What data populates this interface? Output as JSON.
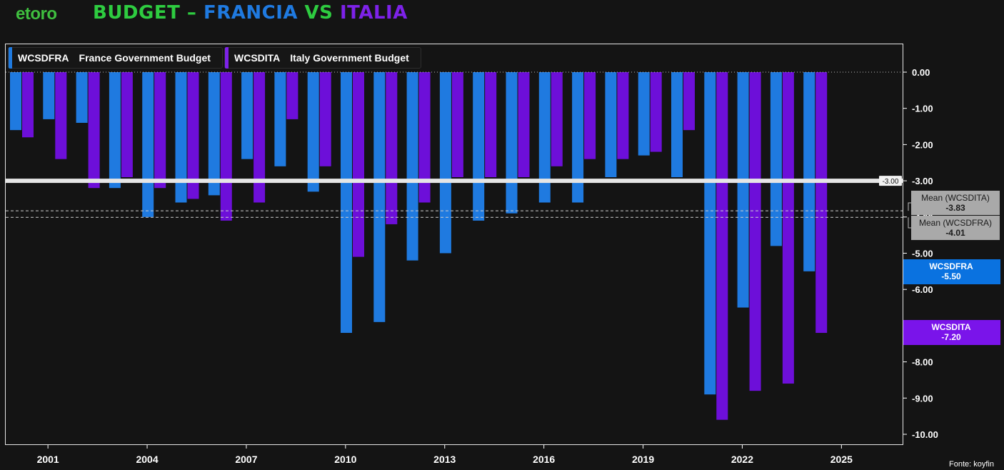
{
  "header": {
    "logo_text": "etoro",
    "title_part1": "BUDGET – ",
    "title_part2": "FRANCIA",
    "title_part3": " VS ",
    "title_part4": "ITALIA"
  },
  "legend": [
    {
      "code": "WCSDFRA",
      "label": "France Government Budget",
      "color": "#1f7ae0"
    },
    {
      "code": "WCSDITA",
      "label": "Italy Government Budget",
      "color": "#7d22e8"
    }
  ],
  "source": "Fonte: koyfin",
  "colors": {
    "france": "#1f7ae0",
    "italy": "#6d0fd9",
    "background": "#141414",
    "reference_line": "#e6e6e6"
  },
  "chart_data": {
    "type": "bar",
    "categories": [
      "2000",
      "2001",
      "2002",
      "2003",
      "2004",
      "2005",
      "2006",
      "2007",
      "2008",
      "2009",
      "2010",
      "2011",
      "2012",
      "2013",
      "2014",
      "2015",
      "2016",
      "2017",
      "2018",
      "2019",
      "2020",
      "2021",
      "2022",
      "2023",
      "2024"
    ],
    "series": [
      {
        "name": "WCSDFRA",
        "label": "France Government Budget",
        "values": [
          -1.6,
          -1.3,
          -1.4,
          -3.2,
          -4.0,
          -3.6,
          -3.4,
          -2.4,
          -2.6,
          -3.3,
          -7.2,
          -6.9,
          -5.2,
          -5.0,
          -4.1,
          -3.9,
          -3.6,
          -3.6,
          -2.9,
          -2.3,
          -2.9,
          -8.9,
          -6.5,
          -4.8,
          -5.5
        ]
      },
      {
        "name": "WCSDITA",
        "label": "Italy Government Budget",
        "values": [
          -1.8,
          -2.4,
          -3.2,
          -2.9,
          -3.2,
          -3.5,
          -4.1,
          -3.6,
          -1.3,
          -2.6,
          -5.1,
          -4.2,
          -3.6,
          -2.9,
          -2.9,
          -2.9,
          -2.6,
          -2.4,
          -2.4,
          -2.2,
          -1.6,
          -9.6,
          -8.8,
          -8.6,
          -7.2
        ]
      }
    ],
    "x_tick_labels": [
      "2001",
      "2004",
      "2007",
      "2010",
      "2013",
      "2016",
      "2019",
      "2022",
      "2025"
    ],
    "y_ticks": [
      0,
      -1,
      -2,
      -3,
      -4,
      -5,
      -6,
      -7,
      -8,
      -9,
      -10
    ],
    "y_tick_labels": [
      "0.00",
      "-1.00",
      "-2.00",
      "-3.00",
      "-4.00",
      "-5.00",
      "-6.00",
      "-7.00",
      "-8.00",
      "-9.00",
      "-10.00"
    ],
    "ylim": [
      -10.2,
      0.6
    ],
    "reference_line": {
      "value": -3.0,
      "label": "-3.00"
    },
    "mean_lines": [
      {
        "name": "Mean (WCSDITA)",
        "value": -3.83,
        "label": "-3.83"
      },
      {
        "name": "Mean (WCSDFRA)",
        "value": -4.01,
        "label": "-4.01"
      }
    ],
    "last_value_tags": [
      {
        "name": "WCSDFRA",
        "value": -5.5,
        "label": "-5.50",
        "color": "#0a72e0"
      },
      {
        "name": "WCSDITA",
        "value": -7.2,
        "label": "-7.20",
        "color": "#7a14ea"
      }
    ],
    "grid": false,
    "legend_position": "top-left"
  }
}
